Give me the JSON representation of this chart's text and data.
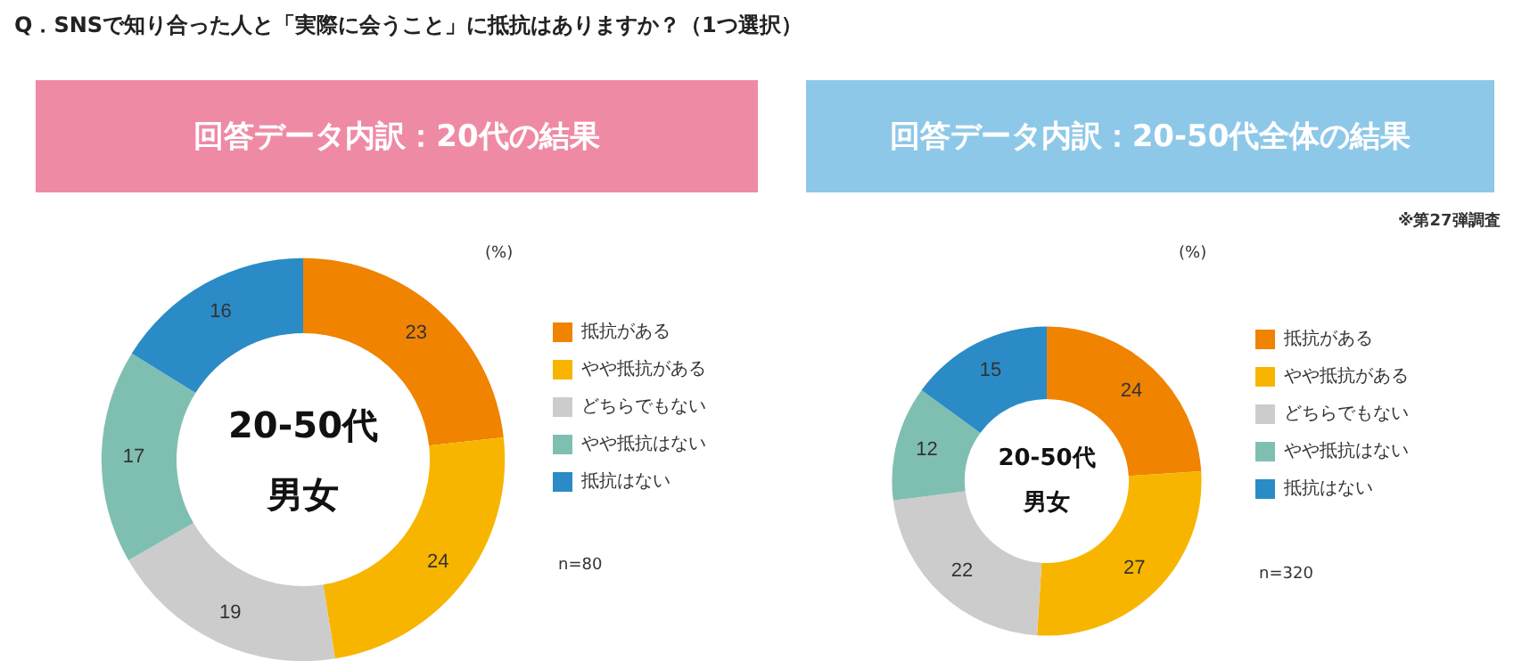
{
  "chart_data": [
    {
      "type": "donut",
      "title": "回答データ内訳：20代の結果",
      "categories": [
        "抵抗がある",
        "やや抵抗がある",
        "どちらでもない",
        "やや抵抗はない",
        "抵抗はない"
      ],
      "values": [
        23,
        24,
        19,
        17,
        16
      ],
      "colors": [
        "#f08300",
        "#f8b500",
        "#cccccc",
        "#7fbfb1",
        "#2a8bc6"
      ],
      "data_labels": true,
      "legend": "right",
      "annotations": [
        "Q．SNSで知り合った人と「実際に会うこと」に抵抗はありますか？（1つ選択）",
        "(%)",
        "n=80",
        "20-50代",
        "男女"
      ]
    },
    {
      "type": "donut",
      "title": "回答データ内訳：20-50代全体の結果",
      "categories": [
        "抵抗がある",
        "やや抵抗がある",
        "どちらでもない",
        "やや抵抗はない",
        "抵抗はない"
      ],
      "values": [
        24,
        27,
        22,
        12,
        15
      ],
      "colors": [
        "#f08300",
        "#f8b500",
        "#cccccc",
        "#7fbfb1",
        "#2a8bc6"
      ],
      "data_labels": true,
      "legend": "right",
      "annotations": [
        "※第27弾調査",
        "(%)",
        "n=320",
        "20-50代",
        "男女"
      ]
    }
  ]
}
